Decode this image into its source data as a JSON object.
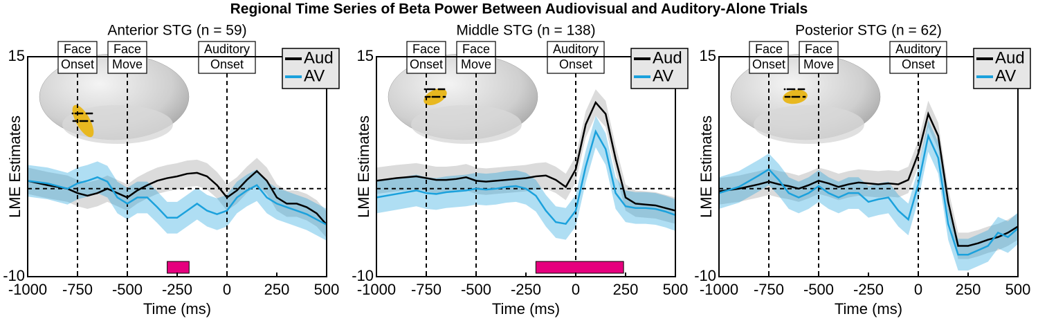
{
  "title": "Regional Time Series of Beta Power Between Audiovisual and Auditory-Alone Trials",
  "chart_data": [
    {
      "type": "line",
      "title": "Anterior STG (n = 59)",
      "xlabel": "Time (ms)",
      "ylabel": "LME Estimates",
      "x": [
        -1000,
        -900,
        -800,
        -750,
        -700,
        -650,
        -600,
        -550,
        -500,
        -450,
        -400,
        -350,
        -300,
        -250,
        -200,
        -150,
        -100,
        -50,
        0,
        50,
        100,
        150,
        200,
        250,
        300,
        350,
        400,
        450,
        500
      ],
      "series": [
        {
          "name": "Aud",
          "color": "#000000",
          "ci": 1.5,
          "values": [
            0.9,
            0.4,
            0,
            -0.5,
            -0.8,
            -0.5,
            0,
            -0.5,
            -1,
            -0.2,
            0.4,
            0.9,
            1.2,
            1.4,
            1.7,
            1.8,
            1.4,
            0.4,
            -1,
            -0.2,
            1,
            2,
            0.9,
            -1,
            -1.7,
            -1.7,
            -2.1,
            -2.8,
            -4.1
          ]
        },
        {
          "name": "AV",
          "color": "#1ba1dc",
          "ci": 1.8,
          "values": [
            0.9,
            0.6,
            0,
            0.6,
            0.9,
            1.3,
            0.8,
            -1,
            -1.7,
            -1,
            -1,
            -2.1,
            -3.3,
            -3.3,
            -2.5,
            -1.7,
            -2.5,
            -2.9,
            -2.5,
            -1,
            -0.2,
            0.4,
            -1,
            -1.7,
            -2.1,
            -2.5,
            -2.9,
            -3.5,
            -4.1
          ]
        }
      ],
      "xlim": [
        -1000,
        500
      ],
      "ylim": [
        -10,
        15
      ],
      "xticks": [
        -1000,
        -750,
        -500,
        -250,
        0,
        250,
        500
      ],
      "yticks": [
        -10,
        15
      ],
      "hline": 0,
      "events": [
        {
          "x": -750,
          "lines": [
            "Face",
            "Onset"
          ]
        },
        {
          "x": -500,
          "lines": [
            "Face",
            "Move"
          ]
        },
        {
          "x": 0,
          "lines": [
            "Auditory",
            "Onset"
          ]
        }
      ],
      "significance": {
        "range": [
          -300,
          -190
        ],
        "color": "#e6007e"
      }
    },
    {
      "type": "line",
      "title": "Middle STG (n = 138)",
      "xlabel": "Time (ms)",
      "ylabel": "LME Estimates",
      "x": [
        -1000,
        -900,
        -800,
        -750,
        -700,
        -650,
        -600,
        -550,
        -500,
        -450,
        -400,
        -350,
        -300,
        -250,
        -200,
        -150,
        -100,
        -50,
        0,
        50,
        100,
        150,
        200,
        250,
        300,
        350,
        400,
        450,
        500
      ],
      "series": [
        {
          "name": "Aud",
          "color": "#000000",
          "ci": 1.5,
          "values": [
            0.9,
            1.2,
            1.4,
            1.2,
            1.0,
            1.0,
            1.1,
            1.3,
            0.9,
            0.8,
            0.9,
            1.0,
            1.1,
            1.2,
            1.4,
            1.5,
            1.0,
            0.2,
            2.2,
            7.3,
            9.8,
            8.5,
            3.4,
            -1,
            -1.7,
            -1.8,
            -1.9,
            -2.2,
            -2.5
          ]
        },
        {
          "name": "AV",
          "color": "#1ba1dc",
          "ci": 1.8,
          "values": [
            -1.0,
            -0.6,
            -0.2,
            -0.5,
            -0.6,
            -0.4,
            -0.3,
            -0.2,
            0,
            -0.1,
            0,
            0.2,
            0.3,
            0,
            -0.8,
            -2.5,
            -3.8,
            -4,
            -2.5,
            2.5,
            6.5,
            4.5,
            -0.5,
            -2,
            -2.2,
            -2.2,
            -2.3,
            -2.6,
            -3
          ]
        }
      ],
      "xlim": [
        -1000,
        500
      ],
      "ylim": [
        -10,
        15
      ],
      "xticks": [
        -1000,
        -750,
        -500,
        -250,
        0,
        250,
        500
      ],
      "yticks": [
        -10,
        15
      ],
      "hline": 0,
      "events": [
        {
          "x": -750,
          "lines": [
            "Face",
            "Onset"
          ]
        },
        {
          "x": -500,
          "lines": [
            "Face",
            "Move"
          ]
        },
        {
          "x": 0,
          "lines": [
            "Auditory",
            "Onset"
          ]
        }
      ],
      "significance": {
        "range": [
          -200,
          240
        ],
        "color": "#e6007e"
      }
    },
    {
      "type": "line",
      "title": "Posterior STG (n = 62)",
      "xlabel": "Time (ms)",
      "ylabel": "LME Estimates",
      "x": [
        -1000,
        -900,
        -800,
        -750,
        -700,
        -650,
        -600,
        -550,
        -500,
        -450,
        -400,
        -350,
        -300,
        -250,
        -200,
        -150,
        -100,
        -50,
        0,
        50,
        100,
        150,
        200,
        250,
        300,
        350,
        400,
        450,
        500
      ],
      "series": [
        {
          "name": "Aud",
          "color": "#000000",
          "ci": 1.5,
          "values": [
            -0.3,
            0,
            0.5,
            0.8,
            0.5,
            0.3,
            0,
            0.4,
            0.9,
            0.6,
            0.2,
            0.5,
            0.7,
            0.6,
            0.5,
            0.6,
            0.5,
            1.0,
            4.0,
            8.5,
            6.0,
            -1.5,
            -6.5,
            -6.5,
            -6.2,
            -5.8,
            -5.5,
            -5.0,
            -4.3
          ]
        },
        {
          "name": "AV",
          "color": "#1ba1dc",
          "ci": 1.8,
          "values": [
            -0.5,
            0.2,
            1.5,
            2.2,
            1.0,
            -0.5,
            -1.0,
            -0.5,
            0.3,
            -0.5,
            -1.0,
            -0.5,
            -0.5,
            -1.5,
            -1.2,
            -1.0,
            -2.5,
            -3.5,
            0.5,
            6.0,
            3.5,
            -4.0,
            -7.5,
            -7.5,
            -7.0,
            -6.5,
            -5.0,
            -5.5,
            -4.5
          ]
        }
      ],
      "xlim": [
        -1000,
        500
      ],
      "ylim": [
        -10,
        15
      ],
      "xticks": [
        -1000,
        -750,
        -500,
        -250,
        0,
        250,
        500
      ],
      "yticks": [
        -10,
        15
      ],
      "hline": 0,
      "events": [
        {
          "x": -750,
          "lines": [
            "Face",
            "Onset"
          ]
        },
        {
          "x": -500,
          "lines": [
            "Face",
            "Move"
          ]
        },
        {
          "x": 0,
          "lines": [
            "Auditory",
            "Onset"
          ]
        }
      ]
    }
  ]
}
